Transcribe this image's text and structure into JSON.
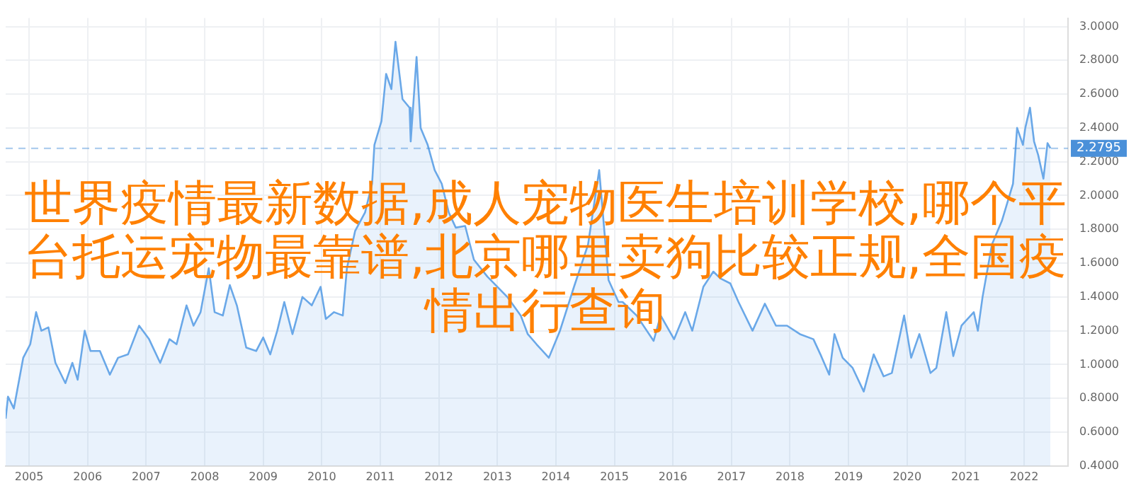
{
  "chart_data": {
    "type": "area",
    "title": "世界疫情最新数据,成人宠物医生培训学校,哪个平台托运宠物最靠谱,北京哪里卖狗比较正规,全国疫情出行查询",
    "x": [
      2004.6,
      2004.64,
      2004.74,
      2004.9,
      2005.02,
      2005.12,
      2005.21,
      2005.33,
      2005.45,
      2005.62,
      2005.74,
      2005.83,
      2005.95,
      2006.05,
      2006.21,
      2006.38,
      2006.52,
      2006.69,
      2006.88,
      2007.05,
      2007.24,
      2007.4,
      2007.52,
      2007.69,
      2007.81,
      2007.93,
      2008.07,
      2008.17,
      2008.31,
      2008.43,
      2008.55,
      2008.71,
      2008.88,
      2009.0,
      2009.12,
      2009.24,
      2009.36,
      2009.5,
      2009.67,
      2009.83,
      2009.98,
      2010.07,
      2010.21,
      2010.36,
      2010.43,
      2010.57,
      2010.74,
      2010.86,
      2010.9,
      2011.02,
      2011.1,
      2011.19,
      2011.26,
      2011.38,
      2011.5,
      2011.52,
      2011.62,
      2011.69,
      2011.81,
      2011.93,
      2012.05,
      2012.17,
      2012.29,
      2012.45,
      2012.6,
      2012.83,
      2013.17,
      2013.4,
      2013.52,
      2013.67,
      2013.88,
      2014.07,
      2014.31,
      2014.55,
      2014.74,
      2014.9,
      2015.07,
      2015.14,
      2015.38,
      2015.67,
      2015.79,
      2016.02,
      2016.21,
      2016.33,
      2016.52,
      2016.69,
      2016.81,
      2016.98,
      2017.12,
      2017.36,
      2017.57,
      2017.76,
      2017.95,
      2018.17,
      2018.4,
      2018.52,
      2018.67,
      2018.76,
      2018.9,
      2019.07,
      2019.26,
      2019.43,
      2019.6,
      2019.74,
      2019.95,
      2020.07,
      2020.21,
      2020.4,
      2020.5,
      2020.67,
      2020.79,
      2020.93,
      2021.14,
      2021.21,
      2021.29,
      2021.45,
      2021.62,
      2021.81,
      2021.88,
      2021.98,
      2022.02,
      2022.1,
      2022.17,
      2022.24,
      2022.33,
      2022.4,
      2022.45
    ],
    "series": [
      {
        "color": "#6aa8e8",
        "values": [
          0.68,
          0.81,
          0.74,
          1.04,
          1.12,
          1.31,
          1.2,
          1.22,
          1.01,
          0.89,
          1.01,
          0.91,
          1.2,
          1.08,
          1.08,
          0.94,
          1.04,
          1.06,
          1.23,
          1.15,
          1.01,
          1.15,
          1.12,
          1.35,
          1.23,
          1.31,
          1.57,
          1.31,
          1.29,
          1.47,
          1.35,
          1.1,
          1.08,
          1.16,
          1.06,
          1.2,
          1.37,
          1.18,
          1.4,
          1.35,
          1.46,
          1.27,
          1.31,
          1.29,
          1.57,
          1.79,
          1.9,
          2.07,
          2.3,
          2.44,
          2.72,
          2.63,
          2.91,
          2.57,
          2.52,
          2.32,
          2.82,
          2.4,
          2.3,
          2.15,
          2.07,
          1.9,
          1.81,
          1.82,
          1.62,
          1.52,
          1.4,
          1.29,
          1.18,
          1.12,
          1.04,
          1.2,
          1.46,
          1.71,
          2.15,
          1.5,
          1.37,
          1.37,
          1.29,
          1.14,
          1.29,
          1.15,
          1.31,
          1.2,
          1.46,
          1.55,
          1.51,
          1.48,
          1.37,
          1.2,
          1.36,
          1.23,
          1.23,
          1.18,
          1.15,
          1.06,
          0.94,
          1.18,
          1.04,
          0.98,
          0.84,
          1.06,
          0.93,
          0.95,
          1.29,
          1.04,
          1.18,
          0.95,
          0.98,
          1.31,
          1.05,
          1.23,
          1.31,
          1.2,
          1.4,
          1.71,
          1.85,
          2.07,
          2.4,
          2.3,
          2.4,
          2.52,
          2.32,
          2.24,
          2.1,
          2.31,
          2.28
        ]
      }
    ],
    "xlim": [
      2004.6,
      2022.75
    ],
    "xticks": [
      2005,
      2006,
      2007,
      2008,
      2009,
      2010,
      2011,
      2012,
      2013,
      2014,
      2015,
      2016,
      2017,
      2018,
      2019,
      2020,
      2021,
      2022
    ],
    "ylim": [
      0.4,
      3.05
    ],
    "yticks": [
      {
        "value": 0.4,
        "label": "0.4000"
      },
      {
        "value": 0.6,
        "label": "0.6000"
      },
      {
        "value": 0.8,
        "label": "0.8000"
      },
      {
        "value": 1.0,
        "label": "1.0000"
      },
      {
        "value": 1.2,
        "label": "1.2000"
      },
      {
        "value": 1.4,
        "label": "1.4000"
      },
      {
        "value": 1.6,
        "label": "1.6000"
      },
      {
        "value": 1.8,
        "label": "1.8000"
      },
      {
        "value": 2.0,
        "label": "2.0000"
      },
      {
        "value": 2.2,
        "label": "2.2000"
      },
      {
        "value": 2.4,
        "label": "2.4000"
      },
      {
        "value": 2.6,
        "label": "2.6000"
      },
      {
        "value": 2.8,
        "label": "2.8000"
      },
      {
        "value": 3.0,
        "label": "3.0000"
      }
    ],
    "ref_lines": [
      {
        "axis": "y",
        "value": 2.2795,
        "label": "2.2795",
        "color": "#4a90d9",
        "line_style": "dashed"
      }
    ],
    "grid": true,
    "marker": "none",
    "line_style": "solid"
  }
}
